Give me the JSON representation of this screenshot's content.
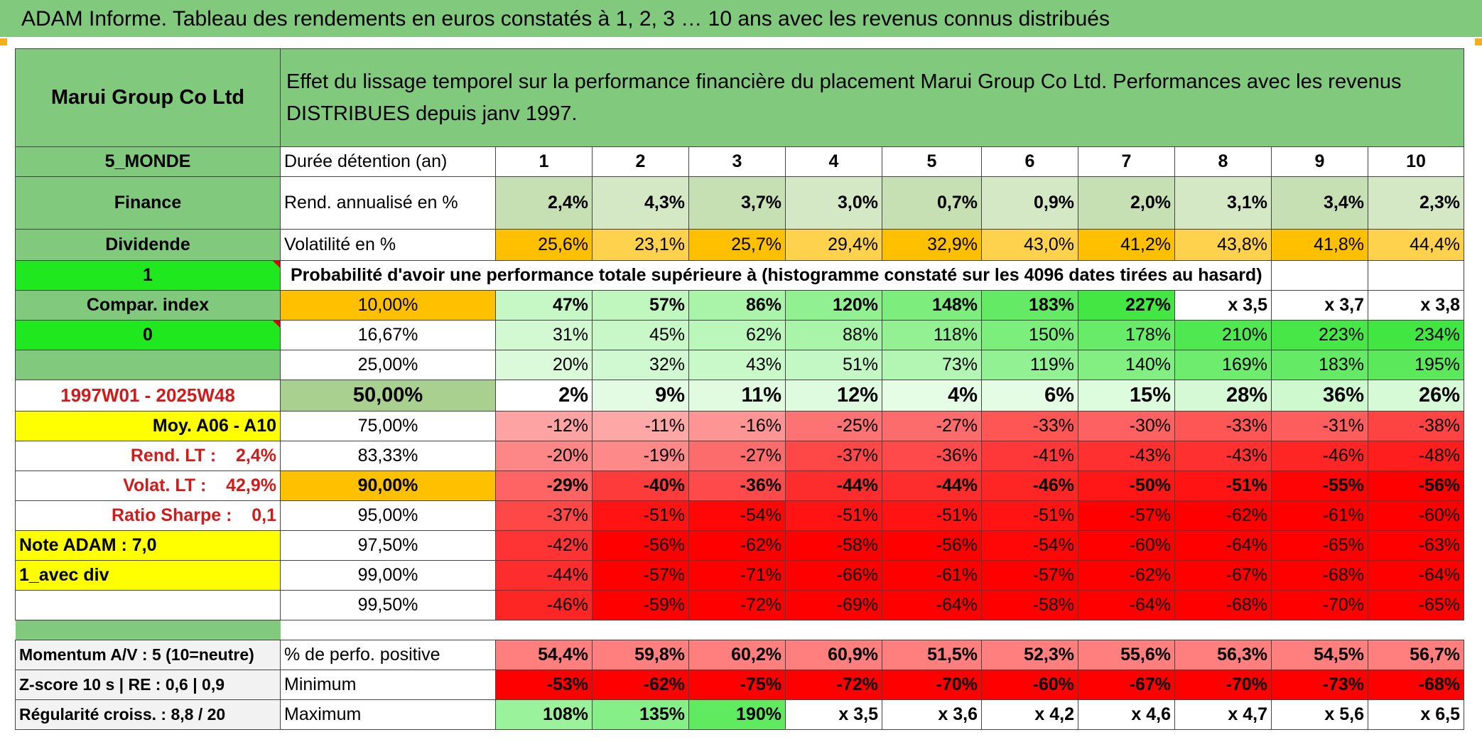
{
  "title": "ADAM Informe. Tableau des rendements en euros constatés à 1, 2, 3 … 10 ans avec les revenus connus distribués",
  "colors": {
    "header_green": "#80c97d",
    "bright_green": "#1fe81f",
    "yellow": "#ffff00",
    "orange": "#ffc000",
    "red_text": "#d11a1a"
  },
  "company": "Marui Group Co Ltd",
  "header_description": "Effet du lissage temporel sur la performance financière du placement Marui Group Co Ltd. Performances avec les revenus DISTRIBUES depuis janv 1997.",
  "left_panel": {
    "region": "5_MONDE",
    "sector": "Finance",
    "type": "Dividende",
    "flag1": "1",
    "compar_index": "Compar. index",
    "flag0": "0",
    "period": "1997W01 - 2025W48",
    "moy": "Moy. A06 - A10",
    "rend_lt": "Rend. LT :    2,4%",
    "volat_lt": "Volat. LT :    42,9%",
    "sharpe": "Ratio Sharpe :    0,1",
    "note": "Note ADAM : 7,0",
    "avec_div": "1_avec div"
  },
  "labels": {
    "duration": "Durée détention (an)",
    "rend": "Rend. annualisé en %",
    "vol": "Volatilité en %",
    "prob": "Probabilité d'avoir une performance totale supérieure à (histogramme constaté sur les 4096 dates tirées au hasard)",
    "pos": "% de perfo. positive",
    "min": "Minimum",
    "max": "Maximum"
  },
  "years": [
    "1",
    "2",
    "3",
    "4",
    "5",
    "6",
    "7",
    "8",
    "9",
    "10"
  ],
  "rend": [
    "2,4%",
    "4,3%",
    "3,7%",
    "3,0%",
    "0,7%",
    "0,9%",
    "2,0%",
    "3,1%",
    "3,4%",
    "2,3%"
  ],
  "vol": [
    "25,6%",
    "23,1%",
    "25,7%",
    "29,4%",
    "32,9%",
    "43,0%",
    "41,2%",
    "43,8%",
    "41,8%",
    "44,4%"
  ],
  "percentiles": [
    {
      "p": "10,00%",
      "values": [
        "47%",
        "57%",
        "86%",
        "120%",
        "148%",
        "183%",
        "227%",
        "x 3,5",
        "x 3,7",
        "x 3,8"
      ]
    },
    {
      "p": "16,67%",
      "values": [
        "31%",
        "45%",
        "62%",
        "88%",
        "118%",
        "150%",
        "178%",
        "210%",
        "223%",
        "234%"
      ]
    },
    {
      "p": "25,00%",
      "values": [
        "20%",
        "32%",
        "43%",
        "51%",
        "73%",
        "119%",
        "140%",
        "169%",
        "183%",
        "195%"
      ]
    },
    {
      "p": "50,00%",
      "values": [
        "2%",
        "9%",
        "11%",
        "12%",
        "4%",
        "6%",
        "15%",
        "28%",
        "36%",
        "26%"
      ]
    },
    {
      "p": "75,00%",
      "values": [
        "-12%",
        "-11%",
        "-16%",
        "-25%",
        "-27%",
        "-33%",
        "-30%",
        "-33%",
        "-31%",
        "-38%"
      ]
    },
    {
      "p": "83,33%",
      "values": [
        "-20%",
        "-19%",
        "-27%",
        "-37%",
        "-36%",
        "-41%",
        "-43%",
        "-43%",
        "-46%",
        "-48%"
      ]
    },
    {
      "p": "90,00%",
      "values": [
        "-29%",
        "-40%",
        "-36%",
        "-44%",
        "-44%",
        "-46%",
        "-50%",
        "-51%",
        "-55%",
        "-56%"
      ]
    },
    {
      "p": "95,00%",
      "values": [
        "-37%",
        "-51%",
        "-54%",
        "-51%",
        "-51%",
        "-51%",
        "-57%",
        "-62%",
        "-61%",
        "-60%"
      ]
    },
    {
      "p": "97,50%",
      "values": [
        "-42%",
        "-56%",
        "-62%",
        "-58%",
        "-56%",
        "-54%",
        "-60%",
        "-64%",
        "-65%",
        "-63%"
      ]
    },
    {
      "p": "99,00%",
      "values": [
        "-44%",
        "-57%",
        "-71%",
        "-66%",
        "-61%",
        "-57%",
        "-62%",
        "-67%",
        "-68%",
        "-64%"
      ]
    },
    {
      "p": "99,50%",
      "values": [
        "-46%",
        "-59%",
        "-72%",
        "-69%",
        "-64%",
        "-58%",
        "-64%",
        "-68%",
        "-70%",
        "-65%"
      ]
    }
  ],
  "bottom": {
    "momentum": "Momentum A/V : 5 (10=neutre)",
    "zscore": "Z-score 10 s | RE : 0,6 | 0,9",
    "regularite": "Régularité croiss. : 8,8 / 20",
    "pos": [
      "54,4%",
      "59,8%",
      "60,2%",
      "60,9%",
      "51,5%",
      "52,3%",
      "55,6%",
      "56,3%",
      "54,5%",
      "56,7%"
    ],
    "min": [
      "-53%",
      "-62%",
      "-75%",
      "-72%",
      "-70%",
      "-60%",
      "-67%",
      "-70%",
      "-73%",
      "-68%"
    ],
    "max": [
      "108%",
      "135%",
      "190%",
      "x 3,5",
      "x 3,6",
      "x 4,2",
      "x 4,6",
      "x 4,7",
      "x 5,6",
      "x 6,5"
    ]
  }
}
